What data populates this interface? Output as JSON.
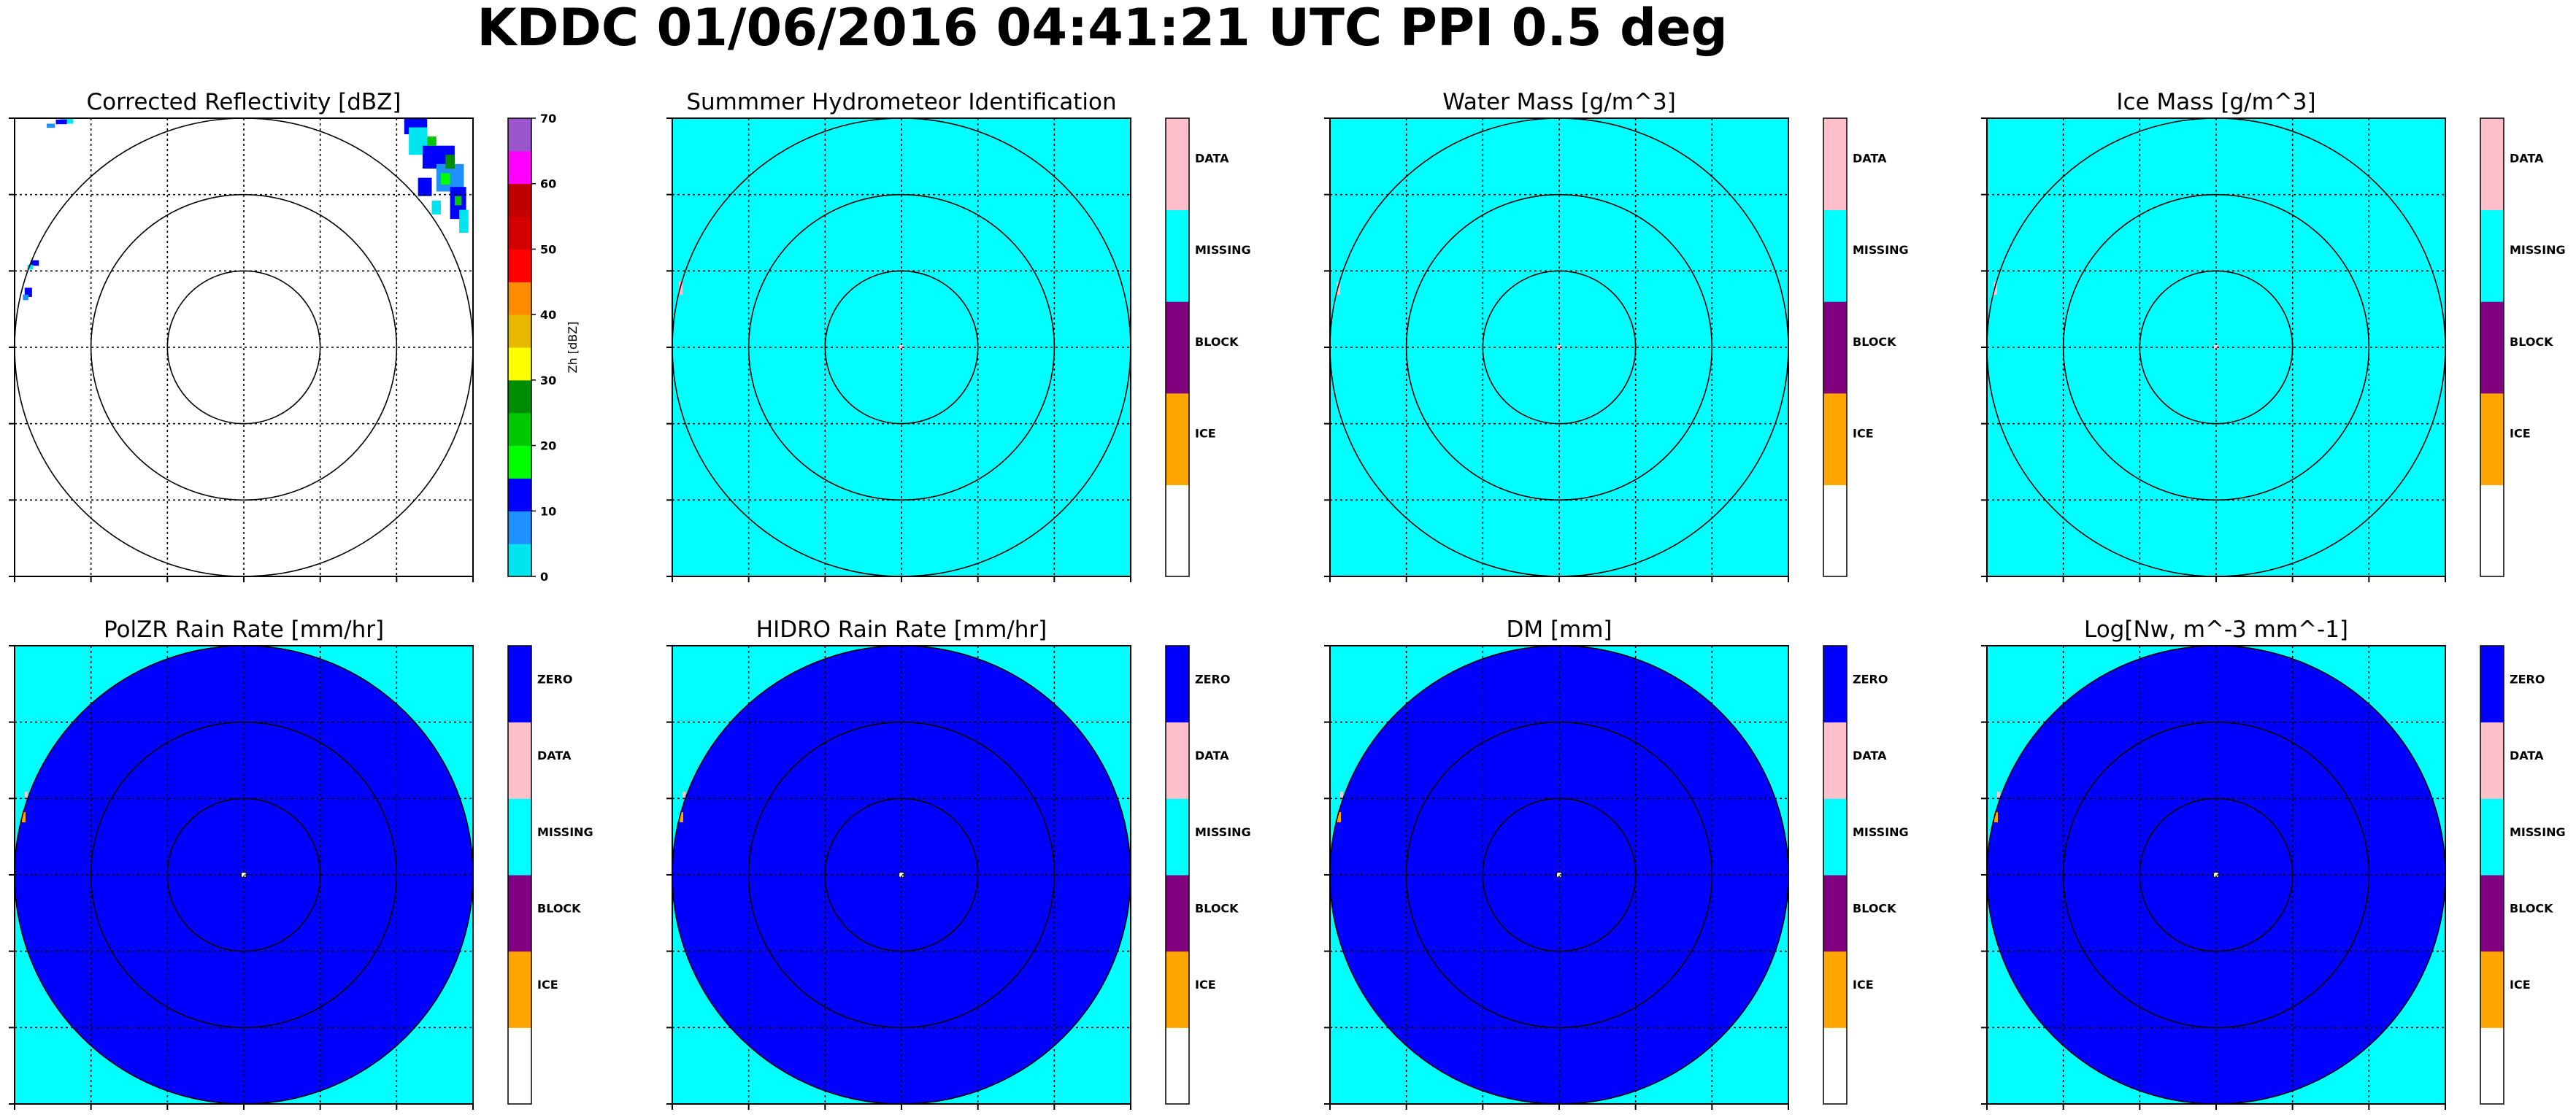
{
  "figure": {
    "title": "KDDC 01/06/2016 04:41:21 UTC PPI 0.5 deg"
  },
  "colors": {
    "ring": "#000000",
    "grid": "#000000",
    "zero": "#0000ff",
    "data": "#ffc0cb",
    "missing": "#00ffff",
    "block": "#800080",
    "ice": "#ffa500",
    "none": "#ffffff",
    "reflectivity_levels": [
      "#00e5ee",
      "#1e90ff",
      "#0000ff",
      "#00ff00",
      "#00c800",
      "#008c00",
      "#ffff00",
      "#e6b800",
      "#ff8c00",
      "#ff0000",
      "#d40000",
      "#c00000",
      "#ff00ff",
      "#9955c9"
    ]
  },
  "chart_data": [
    {
      "type": "heatmap",
      "title": "Corrected Reflectivity [dBZ]",
      "background": "none",
      "range_rings": 3,
      "grid": true,
      "echoes": "scattered small cells at the NE and NW edges and the far west edge",
      "colorbar": {
        "label": "Zh [dBZ]",
        "ticks": [
          "0",
          "10",
          "20",
          "30",
          "40",
          "50",
          "60",
          "70"
        ],
        "ylim": [
          0,
          70
        ],
        "step": 5
      }
    },
    {
      "type": "heatmap",
      "title": "Summmer Hydrometeor Identification",
      "background": "missing",
      "disk": "missing",
      "range_rings": 3,
      "grid": true,
      "colorbar": {
        "categories": [
          "ICE",
          "BLOCK",
          "MISSING",
          "DATA"
        ],
        "blank_bottom": true
      }
    },
    {
      "type": "heatmap",
      "title": "Water Mass [g/m^3]",
      "background": "missing",
      "disk": "missing",
      "range_rings": 3,
      "grid": true,
      "colorbar": {
        "categories": [
          "ICE",
          "BLOCK",
          "MISSING",
          "DATA"
        ],
        "blank_bottom": true
      }
    },
    {
      "type": "heatmap",
      "title": "Ice Mass [g/m^3]",
      "background": "missing",
      "disk": "missing",
      "range_rings": 3,
      "grid": true,
      "colorbar": {
        "categories": [
          "ICE",
          "BLOCK",
          "MISSING",
          "DATA"
        ],
        "blank_bottom": true
      }
    },
    {
      "type": "heatmap",
      "title": "PolZR Rain Rate [mm/hr]",
      "background": "missing",
      "disk": "zero",
      "range_rings": 3,
      "grid": true,
      "colorbar": {
        "categories": [
          "ICE",
          "BLOCK",
          "MISSING",
          "DATA",
          "ZERO"
        ],
        "blank_bottom": true
      }
    },
    {
      "type": "heatmap",
      "title": "HIDRO Rain Rate [mm/hr]",
      "background": "missing",
      "disk": "zero",
      "range_rings": 3,
      "grid": true,
      "colorbar": {
        "categories": [
          "ICE",
          "BLOCK",
          "MISSING",
          "DATA",
          "ZERO"
        ],
        "blank_bottom": true
      }
    },
    {
      "type": "heatmap",
      "title": "DM [mm]",
      "background": "missing",
      "disk": "zero",
      "range_rings": 3,
      "grid": true,
      "colorbar": {
        "categories": [
          "ICE",
          "BLOCK",
          "MISSING",
          "DATA",
          "ZERO"
        ],
        "blank_bottom": true
      }
    },
    {
      "type": "heatmap",
      "title": "Log[Nw, m^-3 mm^-1]",
      "background": "missing",
      "disk": "zero",
      "range_rings": 3,
      "grid": true,
      "colorbar": {
        "categories": [
          "ICE",
          "BLOCK",
          "MISSING",
          "DATA",
          "ZERO"
        ],
        "blank_bottom": true
      }
    }
  ]
}
